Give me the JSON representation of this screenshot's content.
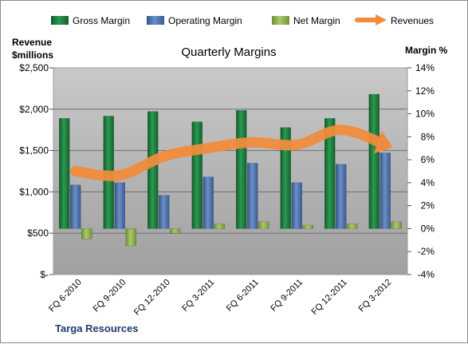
{
  "chart_data": {
    "type": "bar",
    "title": "Quarterly Margins",
    "company": "Targa Resources",
    "left_axis": {
      "label_line1": "Revenue",
      "label_line2": "$millions",
      "min": 0,
      "max": 2500,
      "ticks": [
        0,
        500,
        1000,
        1500,
        2000,
        2500
      ],
      "tick_labels": [
        "$-",
        "$500",
        "$1,000",
        "$1,500",
        "$2,000",
        "$2,500"
      ]
    },
    "right_axis": {
      "label": "Margin %",
      "min": -4,
      "max": 14,
      "ticks": [
        -4,
        -2,
        0,
        2,
        4,
        6,
        8,
        10,
        12,
        14
      ],
      "tick_labels": [
        "-4%",
        "-2%",
        "0%",
        "2%",
        "4%",
        "6%",
        "8%",
        "10%",
        "12%",
        "14%"
      ]
    },
    "categories": [
      "FQ 6-2010",
      "FQ 9-2010",
      "FQ 12-2010",
      "FQ 3-2011",
      "FQ 6-2011",
      "FQ 9-2011",
      "FQ 12-2011",
      "FQ 3-2012"
    ],
    "series": [
      {
        "name": "Gross Margin",
        "kind": "bar",
        "axis": "right",
        "color": "#1e7a3c",
        "values": [
          9.6,
          9.8,
          10.2,
          9.3,
          10.3,
          8.8,
          9.6,
          11.7
        ]
      },
      {
        "name": "Operating Margin",
        "kind": "bar",
        "axis": "right",
        "color": "#4a6fa8",
        "values": [
          3.8,
          4.0,
          2.9,
          4.5,
          5.7,
          4.0,
          5.6,
          6.6
        ]
      },
      {
        "name": "Net Margin",
        "kind": "bar",
        "axis": "right",
        "color": "#8fb34f",
        "values": [
          -0.9,
          -1.5,
          -0.4,
          0.4,
          0.6,
          0.3,
          0.4,
          0.6
        ]
      },
      {
        "name": "Revenues",
        "kind": "line",
        "axis": "left",
        "color": "#f08c3c",
        "values": [
          1250,
          1200,
          1430,
          1530,
          1600,
          1570,
          1750,
          1570
        ]
      }
    ],
    "grid": true,
    "legend": "top"
  }
}
